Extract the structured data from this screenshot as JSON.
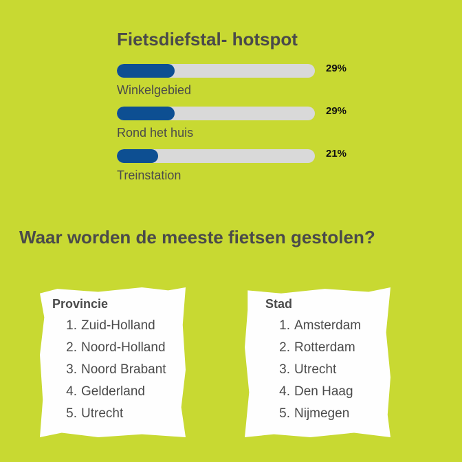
{
  "chart_data": {
    "type": "bar",
    "title": "Fietsdiefstal- hotspot",
    "categories": [
      "Winkelgebied",
      "Rond het huis",
      "Treinstation"
    ],
    "values": [
      29,
      29,
      21
    ],
    "value_labels": [
      "29%",
      "29%",
      "21%"
    ],
    "xlim": [
      0,
      100
    ],
    "bar_color": "#0d4f92",
    "track_color": "#d9d9d9"
  },
  "question": "Waar worden de meeste fietsen gestolen?",
  "provincie": {
    "heading": "Provincie",
    "items": [
      {
        "num": "1.",
        "label": "Zuid-Holland"
      },
      {
        "num": "2.",
        "label": "Noord-Holland"
      },
      {
        "num": "3.",
        "label": "Noord Brabant"
      },
      {
        "num": "4.",
        "label": "Gelderland"
      },
      {
        "num": "5.",
        "label": "Utrecht"
      }
    ]
  },
  "stad": {
    "heading": "Stad",
    "items": [
      {
        "num": "1.",
        "label": "Amsterdam"
      },
      {
        "num": "2.",
        "label": "Rotterdam"
      },
      {
        "num": "3.",
        "label": "Utrecht"
      },
      {
        "num": "4.",
        "label": "Den Haag"
      },
      {
        "num": "5.",
        "label": "Nijmegen"
      }
    ]
  },
  "colors": {
    "background": "#c8d932",
    "text": "#4a4a4a",
    "card": "#fefefe"
  }
}
